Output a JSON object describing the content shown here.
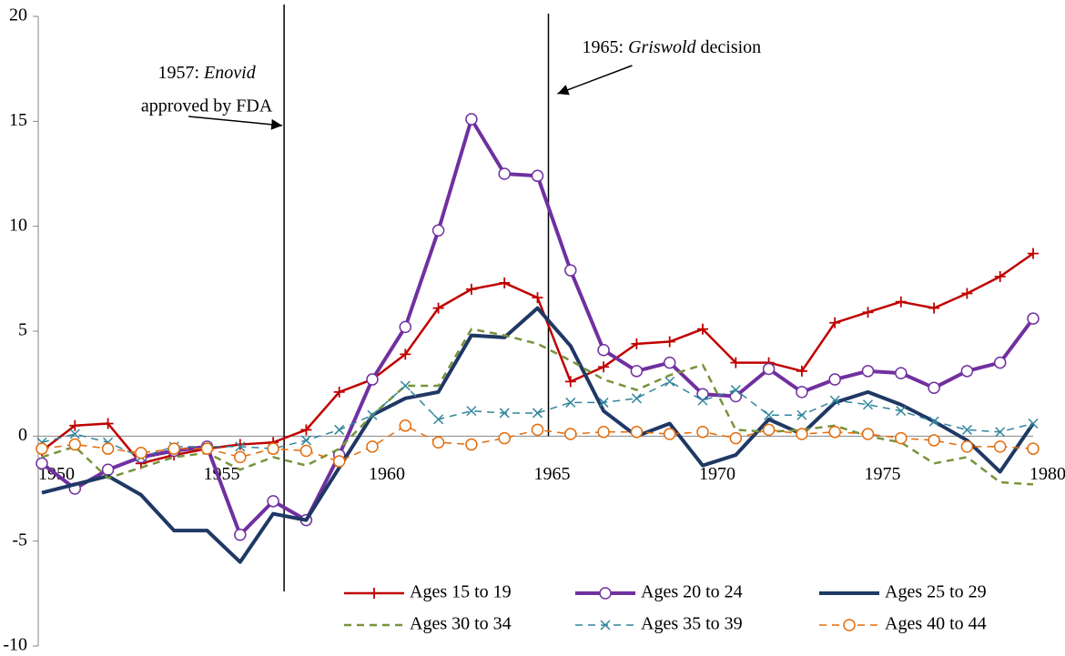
{
  "chart_data": {
    "type": "line",
    "x": [
      1950,
      1951,
      1952,
      1953,
      1954,
      1955,
      1956,
      1957,
      1958,
      1959,
      1960,
      1961,
      1962,
      1963,
      1964,
      1965,
      1966,
      1967,
      1968,
      1969,
      1970,
      1971,
      1972,
      1973,
      1974,
      1975,
      1976,
      1977,
      1978,
      1979,
      1980
    ],
    "xlim": [
      1950,
      1980
    ],
    "xticks": [
      1950,
      1955,
      1960,
      1965,
      1970,
      1975,
      1980
    ],
    "ylim": [
      -10,
      20
    ],
    "yticks": [
      -10,
      -5,
      0,
      5,
      10,
      15,
      20
    ],
    "series": [
      {
        "name": "Ages 15 to 19",
        "color": "#c00000",
        "line_style": "solid",
        "line_weight": "medium",
        "marker": "plus",
        "values": [
          -0.7,
          0.5,
          0.6,
          -1.3,
          -0.9,
          -0.6,
          -0.4,
          -0.3,
          0.3,
          2.1,
          2.7,
          3.9,
          6.1,
          7.0,
          7.3,
          6.6,
          2.6,
          3.3,
          4.4,
          4.5,
          5.1,
          3.5,
          3.5,
          3.1,
          5.4,
          5.9,
          6.4,
          6.1,
          6.8,
          7.6,
          8.7
        ]
      },
      {
        "name": "Ages 20 to 24",
        "color": "#7030a0",
        "line_style": "solid",
        "line_weight": "heavy",
        "marker": "circle",
        "values": [
          -1.3,
          -2.5,
          -1.6,
          -1.0,
          -0.7,
          -0.5,
          -4.7,
          -3.1,
          -4.0,
          -0.9,
          2.7,
          5.2,
          9.8,
          15.1,
          12.5,
          12.4,
          7.9,
          4.1,
          3.1,
          3.5,
          2.0,
          1.9,
          3.2,
          2.1,
          2.7,
          3.1,
          3.0,
          2.3,
          3.1,
          3.5,
          5.6
        ]
      },
      {
        "name": "Ages 25 to 29",
        "color": "#1f3864",
        "line_style": "solid",
        "line_weight": "heavy",
        "marker": "none",
        "values": [
          -2.7,
          -2.3,
          -1.9,
          -2.8,
          -4.5,
          -4.5,
          -6.0,
          -3.7,
          -4.0,
          -1.5,
          1.0,
          1.8,
          2.1,
          4.8,
          4.7,
          6.1,
          4.3,
          1.2,
          0.0,
          0.6,
          -1.4,
          -0.9,
          0.8,
          0.1,
          1.6,
          2.1,
          1.5,
          0.7,
          -0.2,
          -1.7,
          0.6
        ]
      },
      {
        "name": "Ages 30 to 34",
        "color": "#77933c",
        "line_style": "dashed",
        "line_weight": "medium",
        "marker": "none",
        "values": [
          -1.0,
          -0.5,
          -2.0,
          -1.5,
          -1.0,
          -0.8,
          -1.6,
          -1.0,
          -1.4,
          -0.6,
          1.0,
          2.4,
          2.4,
          5.1,
          4.8,
          4.4,
          3.6,
          2.7,
          2.2,
          2.9,
          3.4,
          0.3,
          0.2,
          0.3,
          0.5,
          0.0,
          -0.3,
          -1.3,
          -1.0,
          -2.2,
          -2.3
        ]
      },
      {
        "name": "Ages 35 to 39",
        "color": "#31859c",
        "line_style": "dashed",
        "line_weight": "light",
        "marker": "x",
        "values": [
          -0.3,
          0.1,
          -0.3,
          -1.0,
          -0.5,
          -0.5,
          -0.5,
          -0.6,
          -0.2,
          0.3,
          1.0,
          2.4,
          0.8,
          1.2,
          1.1,
          1.1,
          1.6,
          1.6,
          1.8,
          2.6,
          1.7,
          2.2,
          1.0,
          1.0,
          1.7,
          1.5,
          1.2,
          0.7,
          0.3,
          0.2,
          0.6
        ]
      },
      {
        "name": "Ages 40 to 44",
        "color": "#e46c0a",
        "line_style": "dashed",
        "line_weight": "light",
        "marker": "circle",
        "values": [
          -0.6,
          -0.4,
          -0.6,
          -0.8,
          -0.6,
          -0.6,
          -1.0,
          -0.6,
          -0.7,
          -1.2,
          -0.5,
          0.5,
          -0.3,
          -0.4,
          -0.1,
          0.3,
          0.1,
          0.2,
          0.2,
          0.1,
          0.2,
          -0.1,
          0.3,
          0.1,
          0.2,
          0.1,
          -0.1,
          -0.2,
          -0.5,
          -0.5,
          -0.6
        ]
      }
    ],
    "annotations": [
      {
        "x": 1957,
        "prefix": "1957: ",
        "italic": "Enovid",
        "suffix": "approved by FDA"
      },
      {
        "x": 1965,
        "prefix": "1965: ",
        "italic": "Griswold",
        "suffix": " decision"
      }
    ],
    "legend": "bottom-right"
  }
}
